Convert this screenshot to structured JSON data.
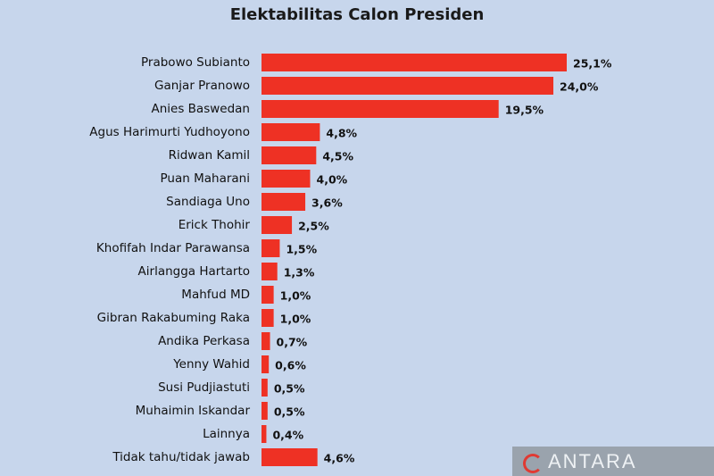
{
  "chart_data": {
    "type": "bar",
    "orientation": "horizontal",
    "title": "Elektabilitas Calon Presiden",
    "categories": [
      "Prabowo Subianto",
      "Ganjar Pranowo",
      "Anies Baswedan",
      "Agus Harimurti Yudhoyono",
      "Ridwan Kamil",
      "Puan Maharani",
      "Sandiaga Uno",
      "Erick Thohir",
      "Khofifah Indar Parawansa",
      "Airlangga Hartarto",
      "Mahfud MD",
      "Gibran Rakabuming Raka",
      "Andika Perkasa",
      "Yenny Wahid",
      "Susi Pudjiastuti",
      "Muhaimin Iskandar",
      "Lainnya",
      "Tidak tahu/tidak jawab"
    ],
    "values": [
      25.1,
      24.0,
      19.5,
      4.8,
      4.5,
      4.0,
      3.6,
      2.5,
      1.5,
      1.3,
      1.0,
      1.0,
      0.7,
      0.6,
      0.5,
      0.5,
      0.4,
      4.6
    ],
    "value_labels": [
      "25,1%",
      "24,0%",
      "19,5%",
      "4,8%",
      "4,5%",
      "4,0%",
      "3,6%",
      "2,5%",
      "1,5%",
      "1,3%",
      "1,0%",
      "1,0%",
      "0,7%",
      "0,6%",
      "0,5%",
      "0,5%",
      "0,4%",
      "4,6%"
    ],
    "xlim": [
      0,
      25.1
    ],
    "grid": false,
    "legend": "none",
    "bar_color": "#ee3124",
    "background_color": "#c7d6ec"
  },
  "watermark": {
    "text": "ANTARA"
  }
}
